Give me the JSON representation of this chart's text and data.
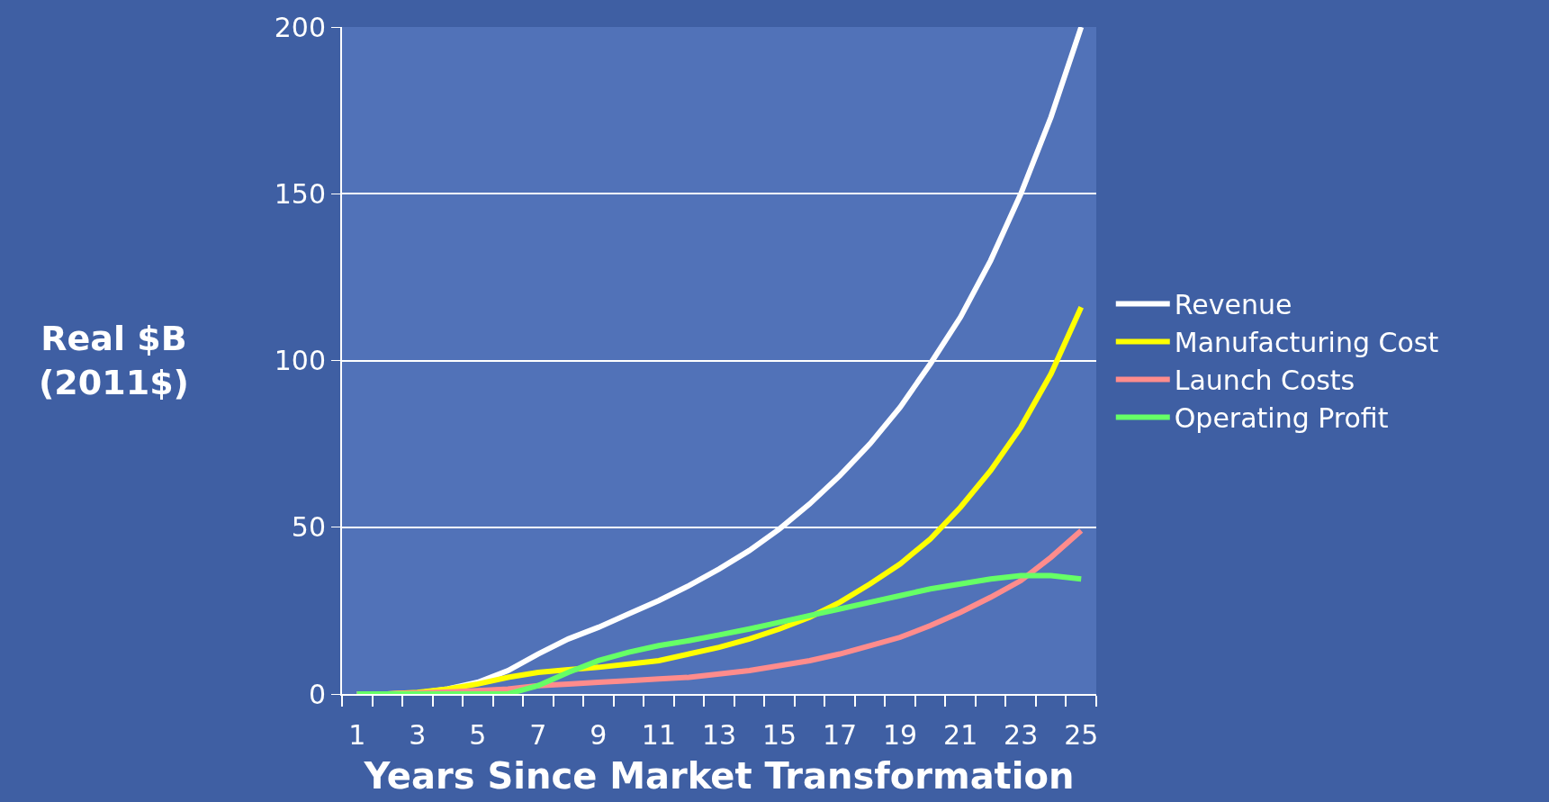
{
  "chart_data": {
    "type": "line",
    "xlabel": "Years Since Market Transformation",
    "ylabel": "Real $B\n(2011$)",
    "x": [
      1,
      2,
      3,
      4,
      5,
      6,
      7,
      8,
      9,
      10,
      11,
      12,
      13,
      14,
      15,
      16,
      17,
      18,
      19,
      20,
      21,
      22,
      23,
      24,
      25
    ],
    "xlim": [
      0.5,
      25.5
    ],
    "xticks": [
      1,
      3,
      5,
      7,
      9,
      11,
      13,
      15,
      17,
      19,
      21,
      23,
      25
    ],
    "ylim": [
      0,
      200
    ],
    "yticks": [
      0,
      50,
      100,
      150,
      200
    ],
    "grid": "y",
    "legend": "right",
    "marker": "none",
    "line_style": "solid",
    "series": [
      {
        "name": "Revenue",
        "color": "#ffffff",
        "values": [
          0,
          0,
          0.3,
          1.5,
          3.5,
          7,
          12,
          16.5,
          20,
          24,
          28,
          32.5,
          37.5,
          43,
          49.5,
          57,
          65.5,
          75,
          86,
          99,
          113,
          130,
          150,
          173,
          200
        ]
      },
      {
        "name": "Manufacturing Cost",
        "color": "#ffff00",
        "values": [
          0,
          0,
          0.5,
          1.5,
          3,
          5,
          6.5,
          7.3,
          8,
          9,
          10,
          12,
          14,
          16.5,
          19.5,
          23,
          27.5,
          33,
          39,
          46.5,
          56,
          67,
          80,
          96,
          116
        ]
      },
      {
        "name": "Launch Costs",
        "color": "#ff8c8c",
        "values": [
          0,
          0,
          0.3,
          0.6,
          1,
          1.5,
          2.5,
          3,
          3.5,
          4,
          4.5,
          5,
          6,
          7,
          8.5,
          10,
          12,
          14.5,
          17,
          20.5,
          24.5,
          29,
          34,
          41,
          49
        ]
      },
      {
        "name": "Operating Profit",
        "color": "#66ff66",
        "values": [
          0,
          0,
          0,
          0,
          0,
          0,
          2.5,
          6.5,
          10,
          12.5,
          14.5,
          16,
          17.7,
          19.5,
          21.5,
          23.5,
          25.5,
          27.5,
          29.5,
          31.5,
          33,
          34.5,
          35.5,
          35.5,
          34.5
        ]
      }
    ]
  }
}
